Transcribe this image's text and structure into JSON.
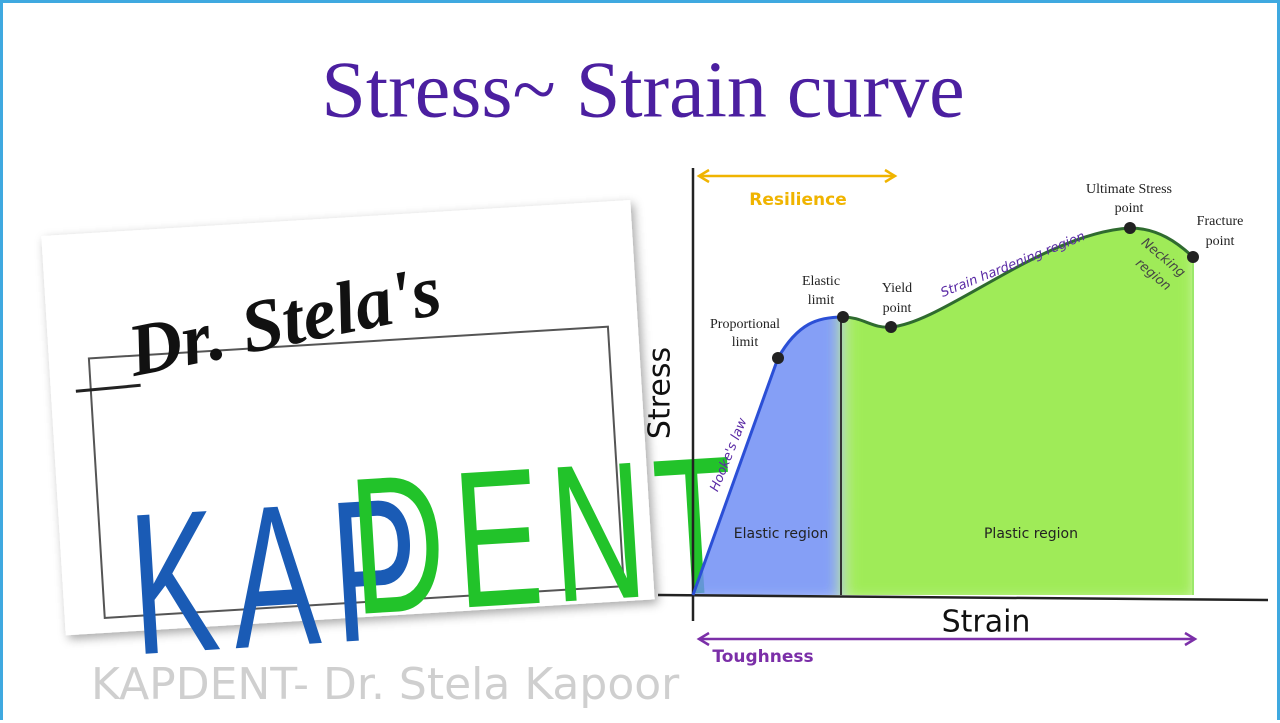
{
  "title": "Stress~ Strain curve",
  "logo": {
    "signature": "Dr. Stela's",
    "brand_blue": "KAP",
    "brand_green": "DENT"
  },
  "diagram": {
    "y_axis": "Stress",
    "x_axis": "Strain",
    "resilience": "Resilience",
    "toughness": "Toughness",
    "hookes_law": "Hooke's law",
    "strain_hardening": "Strain hardening region",
    "necking": [
      "Necking",
      "region"
    ],
    "elastic_region": "Elastic region",
    "plastic_region": "Plastic region",
    "points": {
      "proportional_limit": [
        "Proportional",
        "limit"
      ],
      "elastic_limit": [
        "Elastic",
        "limit"
      ],
      "yield_point": [
        "Yield",
        "point"
      ],
      "ultimate_stress": [
        "Ultimate Stress",
        "point"
      ],
      "fracture": [
        "Fracture",
        "point"
      ]
    }
  },
  "footer": "KAPDENT- Dr. Stela Kapoor"
}
